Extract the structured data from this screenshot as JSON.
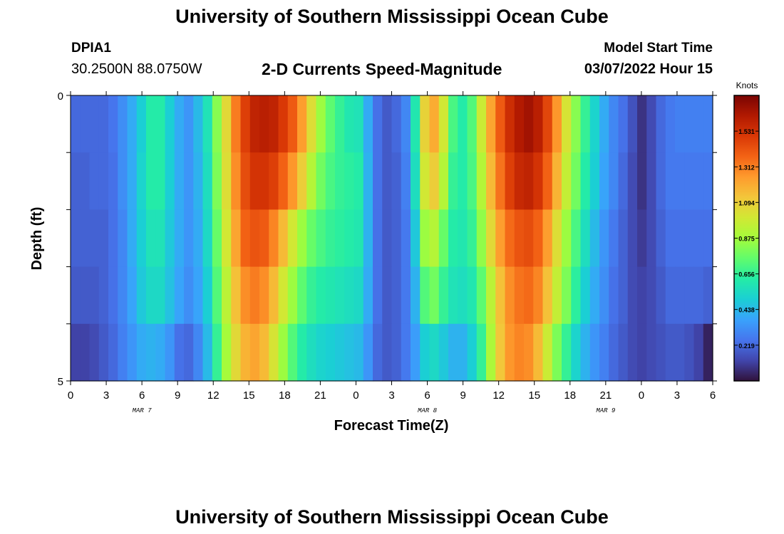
{
  "page": {
    "title": "University of Southern Mississippi Ocean Cube",
    "title_repeat": "University of Southern Mississippi Ocean Cube",
    "station": "DPIA1",
    "coordinates": "30.2500N  88.0750W",
    "model_start_label": "Model Start Time",
    "model_start_value": "03/07/2022 Hour 15"
  },
  "chart_data": {
    "type": "heatmap",
    "title": "2-D Currents Speed-Magnitude",
    "xlabel": "Forecast Time(Z)",
    "ylabel": "Depth (ft)",
    "x_ticks": [
      "0",
      "3",
      "6",
      "9",
      "12",
      "15",
      "18",
      "21",
      "0",
      "3",
      "6",
      "9",
      "12",
      "15",
      "18",
      "21",
      "0",
      "3",
      "6"
    ],
    "date_labels": [
      "MAR 7",
      "MAR 8",
      "MAR 9"
    ],
    "y_ticks": [
      "0",
      "5"
    ],
    "ylim": [
      0,
      5
    ],
    "x_hours": [
      0,
      54
    ],
    "colorbar": {
      "label": "Knots",
      "ticks": [
        "1.531",
        "1.312",
        "1.094",
        "0.875",
        "0.656",
        "0.438",
        "0.219"
      ],
      "range": [
        0,
        1.75
      ]
    },
    "depth_layers": 5,
    "values_by_layer": [
      [
        0.22,
        0.22,
        0.22,
        0.22,
        0.25,
        0.32,
        0.4,
        0.5,
        0.62,
        0.62,
        0.5,
        0.4,
        0.34,
        0.44,
        0.58,
        0.82,
        1.06,
        1.32,
        1.48,
        1.58,
        1.6,
        1.58,
        1.5,
        1.4,
        1.24,
        1.04,
        0.86,
        0.74,
        0.66,
        0.6,
        0.58,
        0.4,
        0.24,
        0.18,
        0.22,
        0.3,
        0.6,
        1.08,
        1.2,
        1.0,
        0.7,
        0.62,
        0.72,
        0.98,
        1.22,
        1.4,
        1.54,
        1.62,
        1.66,
        1.6,
        1.46,
        1.26,
        1.02,
        0.82,
        0.66,
        0.52,
        0.4,
        0.3,
        0.24,
        0.16,
        0.08,
        0.14,
        0.22,
        0.26,
        0.28,
        0.28,
        0.28,
        0.28
      ],
      [
        0.2,
        0.2,
        0.22,
        0.22,
        0.24,
        0.32,
        0.4,
        0.52,
        0.62,
        0.62,
        0.5,
        0.4,
        0.34,
        0.42,
        0.56,
        0.8,
        1.04,
        1.28,
        1.44,
        1.52,
        1.52,
        1.48,
        1.38,
        1.26,
        1.1,
        0.92,
        0.78,
        0.7,
        0.66,
        0.64,
        0.62,
        0.42,
        0.24,
        0.18,
        0.2,
        0.28,
        0.56,
        1.0,
        1.1,
        0.92,
        0.66,
        0.62,
        0.7,
        0.92,
        1.16,
        1.34,
        1.48,
        1.56,
        1.58,
        1.52,
        1.38,
        1.18,
        0.96,
        0.78,
        0.62,
        0.5,
        0.38,
        0.3,
        0.22,
        0.14,
        0.08,
        0.14,
        0.22,
        0.26,
        0.26,
        0.26,
        0.26,
        0.26
      ],
      [
        0.2,
        0.2,
        0.2,
        0.2,
        0.24,
        0.3,
        0.4,
        0.5,
        0.58,
        0.58,
        0.48,
        0.4,
        0.34,
        0.4,
        0.54,
        0.76,
        1.0,
        1.22,
        1.38,
        1.42,
        1.4,
        1.3,
        1.16,
        1.0,
        0.86,
        0.76,
        0.7,
        0.66,
        0.64,
        0.62,
        0.6,
        0.42,
        0.24,
        0.18,
        0.2,
        0.26,
        0.48,
        0.86,
        0.92,
        0.76,
        0.62,
        0.6,
        0.66,
        0.84,
        1.06,
        1.24,
        1.36,
        1.42,
        1.44,
        1.38,
        1.24,
        1.04,
        0.86,
        0.7,
        0.56,
        0.44,
        0.34,
        0.26,
        0.2,
        0.14,
        0.1,
        0.14,
        0.2,
        0.24,
        0.24,
        0.24,
        0.24,
        0.24
      ],
      [
        0.18,
        0.18,
        0.18,
        0.2,
        0.24,
        0.3,
        0.38,
        0.48,
        0.54,
        0.54,
        0.46,
        0.38,
        0.32,
        0.38,
        0.5,
        0.72,
        0.94,
        1.14,
        1.28,
        1.32,
        1.28,
        1.16,
        1.0,
        0.86,
        0.74,
        0.66,
        0.62,
        0.6,
        0.58,
        0.56,
        0.54,
        0.4,
        0.24,
        0.18,
        0.2,
        0.26,
        0.42,
        0.72,
        0.78,
        0.66,
        0.58,
        0.56,
        0.6,
        0.74,
        0.94,
        1.14,
        1.28,
        1.34,
        1.36,
        1.3,
        1.14,
        0.96,
        0.8,
        0.64,
        0.5,
        0.4,
        0.32,
        0.24,
        0.2,
        0.14,
        0.12,
        0.14,
        0.18,
        0.22,
        0.22,
        0.22,
        0.22,
        0.2
      ],
      [
        0.12,
        0.12,
        0.14,
        0.18,
        0.22,
        0.28,
        0.34,
        0.4,
        0.42,
        0.4,
        0.34,
        0.24,
        0.22,
        0.3,
        0.44,
        0.66,
        0.88,
        1.06,
        1.18,
        1.22,
        1.16,
        1.02,
        0.86,
        0.72,
        0.62,
        0.56,
        0.52,
        0.5,
        0.48,
        0.46,
        0.44,
        0.34,
        0.22,
        0.18,
        0.2,
        0.26,
        0.36,
        0.5,
        0.54,
        0.48,
        0.42,
        0.42,
        0.5,
        0.66,
        0.9,
        1.12,
        1.26,
        1.3,
        1.28,
        1.16,
        0.98,
        0.8,
        0.66,
        0.52,
        0.42,
        0.34,
        0.28,
        0.22,
        0.18,
        0.14,
        0.12,
        0.14,
        0.16,
        0.18,
        0.18,
        0.16,
        0.12,
        0.04
      ]
    ]
  },
  "colors": {
    "colormap": [
      "#30123b",
      "#4145ab",
      "#4675ed",
      "#39a2fc",
      "#1bcfd4",
      "#24eca6",
      "#61fc6c",
      "#a4fc3b",
      "#d1e834",
      "#f3c63a",
      "#fe9b2d",
      "#f36315",
      "#d93806",
      "#b11901",
      "#7a0403"
    ]
  }
}
